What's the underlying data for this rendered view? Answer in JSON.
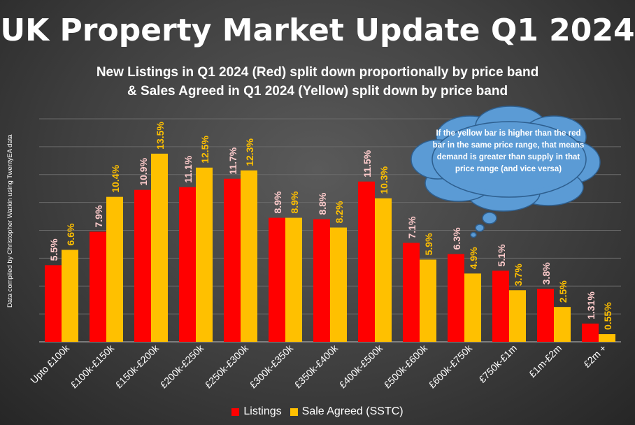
{
  "title": "UK Property Market Update Q1 2024",
  "subtitle_lines": [
    "New Listings in Q1 2024 (Red) split down proportionally by price band",
    "& Sales Agreed in Q1 2024 (Yellow) split down by price band"
  ],
  "side_note": "Data compiled by Christopher Watkin using TwentyEA data",
  "callout": "If the yellow bar is higher than the red bar in the same price range, that means demand is greater than supply in that price range (and vice versa)",
  "colors": {
    "listings": "#ff0000",
    "sale_agreed": "#ffc000",
    "label_listings": "#ffcccc",
    "label_sale_agreed": "#ffc000",
    "callout_fill": "#5b9bd5"
  },
  "chart_data": {
    "type": "bar",
    "title": "New Listings in Q1 2024 (Red) split down proportionally by price band & Sales Agreed in Q1 2024 (Yellow) split down by price band",
    "categories": [
      "Upto £100k",
      "£100k-£150k",
      "£150k-£200k",
      "£200k-£250k",
      "£250k-£300k",
      "£300k-£350k",
      "£350k-£400k",
      "£400k-£500k",
      "£500k-£600k",
      "£600k-£750k",
      "£750k-£1m",
      "£1m-£2m",
      "£2m +"
    ],
    "series": [
      {
        "name": "Listings",
        "values": [
          5.5,
          7.9,
          10.9,
          11.1,
          11.7,
          8.9,
          8.8,
          11.5,
          7.1,
          6.3,
          5.1,
          3.8,
          1.31
        ],
        "labels": [
          "5.5%",
          "7.9%",
          "10.9%",
          "11.1%",
          "11.7%",
          "8.9%",
          "8.8%",
          "11.5%",
          "7.1%",
          "6.3%",
          "5.1%",
          "3.8%",
          "1.31%"
        ]
      },
      {
        "name": "Sale Agreed (SSTC)",
        "values": [
          6.6,
          10.4,
          13.5,
          12.5,
          12.3,
          8.9,
          8.2,
          10.3,
          5.9,
          4.9,
          3.7,
          2.5,
          0.55
        ],
        "labels": [
          "6.6%",
          "10.4%",
          "13.5%",
          "12.5%",
          "12.3%",
          "8.9%",
          "8.2%",
          "10.3%",
          "5.9%",
          "4.9%",
          "3.7%",
          "2.5%",
          "0.55%"
        ]
      }
    ],
    "ylim": [
      0,
      16
    ],
    "grid": true,
    "legend": "bottom"
  }
}
